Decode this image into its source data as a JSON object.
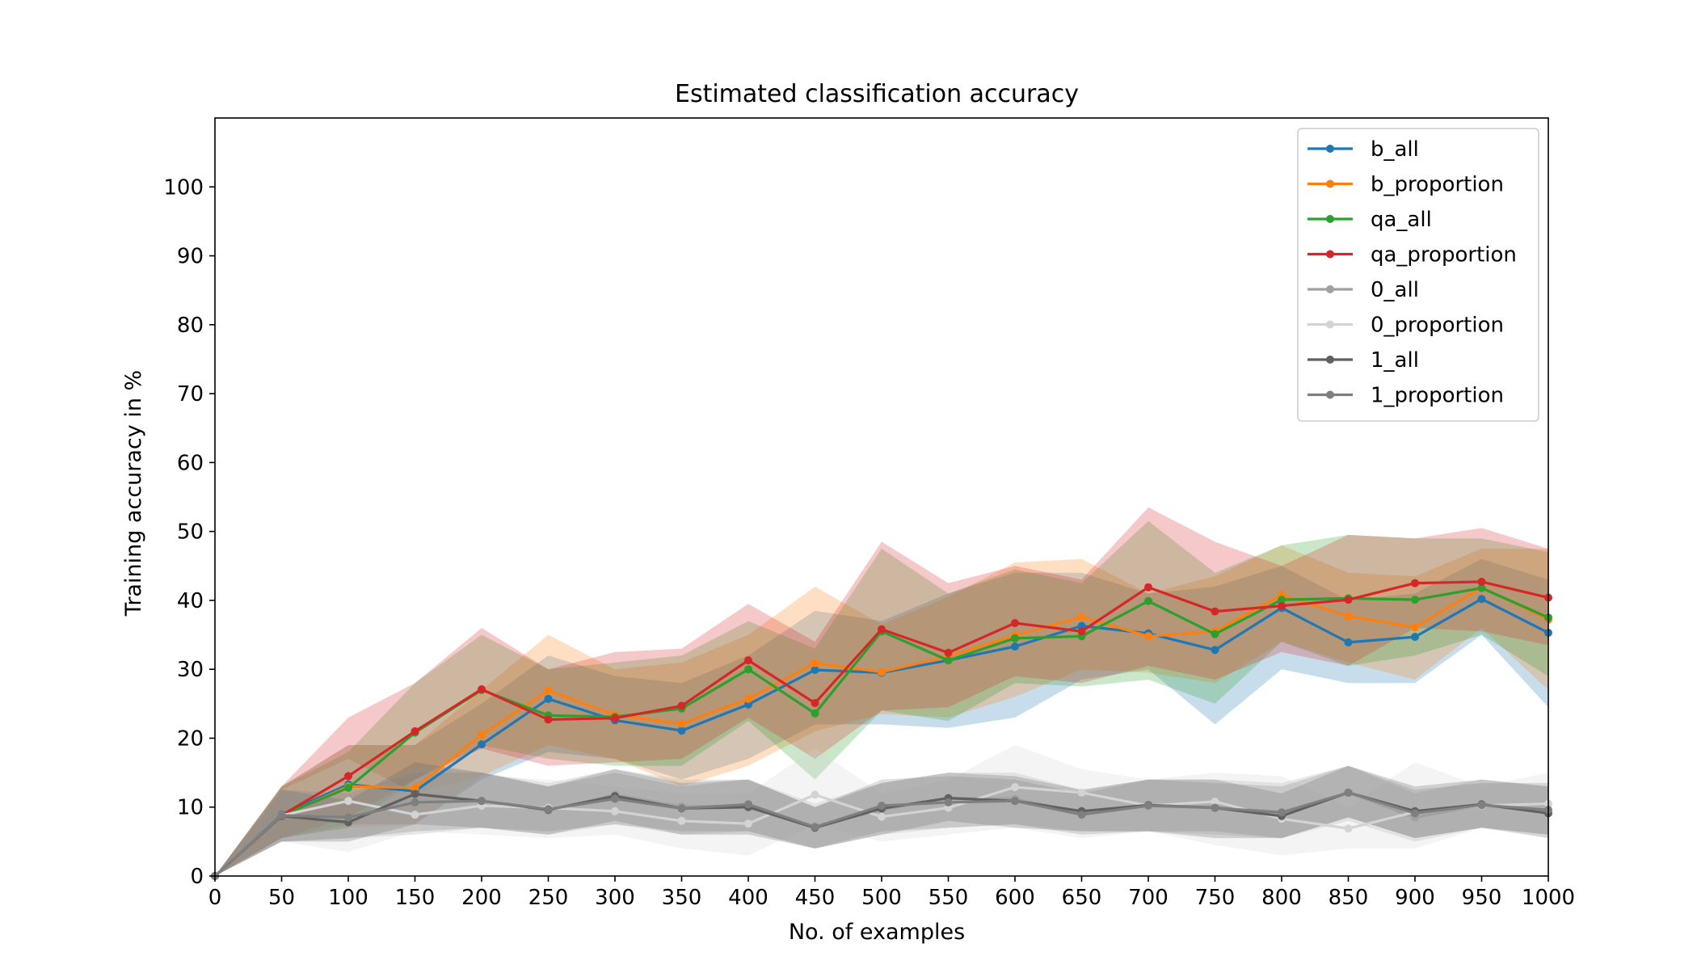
{
  "chart_data": {
    "type": "line",
    "title": "Estimated classification accuracy",
    "xlabel": "No. of examples",
    "ylabel": "Training accuracy in %",
    "xlim": [
      0,
      1000
    ],
    "ylim": [
      0,
      110
    ],
    "xticks": [
      0,
      50,
      100,
      150,
      200,
      250,
      300,
      350,
      400,
      450,
      500,
      550,
      600,
      650,
      700,
      750,
      800,
      850,
      900,
      950,
      1000
    ],
    "yticks": [
      0,
      10,
      20,
      30,
      40,
      50,
      60,
      70,
      80,
      90,
      100
    ],
    "grid": false,
    "legend_position": "top-right",
    "x": [
      0,
      50,
      100,
      150,
      200,
      250,
      300,
      350,
      400,
      450,
      500,
      550,
      600,
      650,
      700,
      750,
      800,
      850,
      900,
      950,
      1000
    ],
    "series": [
      {
        "name": "b_all",
        "color": "#1f77b4",
        "values": [
          0,
          8.9,
          13.3,
          12.3,
          19.1,
          25.7,
          22.6,
          21.1,
          24.9,
          29.9,
          29.5,
          31.3,
          33.3,
          36.3,
          35.2,
          32.8,
          38.9,
          33.9,
          34.7,
          40.2,
          35.3
        ],
        "lower": [
          0,
          5.5,
          7.5,
          7.5,
          14,
          18,
          17,
          14,
          17,
          22,
          22,
          21.5,
          23,
          28.5,
          30,
          22,
          30,
          28,
          28,
          35,
          24.5
        ],
        "upper": [
          0,
          13,
          19,
          19,
          25,
          32,
          29,
          28,
          32,
          38.5,
          37,
          41,
          44,
          44,
          41,
          42,
          45,
          40,
          41,
          46,
          43
        ]
      },
      {
        "name": "b_proportion",
        "color": "#ff7f0e",
        "values": [
          0,
          8.7,
          13.0,
          12.8,
          20.5,
          26.9,
          23.4,
          22.1,
          25.7,
          30.9,
          29.6,
          31.9,
          34.9,
          37.6,
          34.8,
          35.5,
          40.8,
          37.7,
          36.1,
          41.9,
          37.2
        ],
        "lower": [
          0,
          5.5,
          7,
          7.5,
          14.5,
          19,
          17,
          13,
          16,
          21,
          23.5,
          23,
          26,
          30,
          29.5,
          28,
          34,
          31,
          28.5,
          36,
          27
        ],
        "upper": [
          0,
          13,
          19,
          19,
          27,
          35,
          30,
          31,
          35,
          42,
          36.5,
          40.5,
          45.5,
          46,
          41,
          43.5,
          48,
          44,
          43.5,
          47.5,
          47.5
        ]
      },
      {
        "name": "qa_all",
        "color": "#2ca02c",
        "values": [
          0,
          8.8,
          12.8,
          20.8,
          27.0,
          23.3,
          23.1,
          24.3,
          30.0,
          23.6,
          35.5,
          31.3,
          34.5,
          34.8,
          39.9,
          35.1,
          40.1,
          40.3,
          40.1,
          41.8,
          37.5
        ],
        "lower": [
          0,
          5.5,
          7,
          14,
          19,
          17,
          16,
          16,
          22.5,
          14,
          24,
          22.5,
          28,
          27.5,
          28.5,
          25,
          34,
          30.5,
          32,
          35,
          29
        ],
        "upper": [
          0,
          13,
          18,
          28,
          35,
          30,
          31,
          32,
          37,
          33,
          47.5,
          41,
          44.5,
          42.5,
          51.5,
          44,
          48,
          49.5,
          49,
          49,
          47
        ]
      },
      {
        "name": "qa_proportion",
        "color": "#d62728",
        "values": [
          0,
          8.8,
          14.5,
          21.0,
          27.1,
          22.7,
          22.9,
          24.7,
          31.3,
          25.1,
          35.8,
          32.4,
          36.7,
          35.5,
          41.9,
          38.4,
          39.2,
          40.1,
          42.5,
          42.7,
          40.4
        ],
        "lower": [
          0,
          5.5,
          8.5,
          14,
          18.5,
          16,
          16.5,
          17,
          23,
          17,
          24,
          24.5,
          29,
          28,
          30.5,
          28.5,
          32.5,
          30.5,
          36,
          35.5,
          33.5
        ],
        "upper": [
          0,
          13,
          23,
          28,
          36,
          30,
          32.5,
          33,
          39.5,
          34,
          48.5,
          42.5,
          45,
          43,
          53.5,
          48.5,
          45,
          49.5,
          49,
          50.5,
          47.5
        ]
      },
      {
        "name": "0_all",
        "color": "#a0a0a0",
        "values": [
          0,
          8.8,
          8.3,
          11.1,
          10.9,
          9.5,
          11.8,
          10.1,
          10.1,
          7.2,
          9.6,
          11.3,
          11.2,
          9.2,
          10.2,
          10.0,
          9.3,
          12.1,
          8.5,
          10.3,
          9.2
        ],
        "lower": [
          0,
          5,
          5.5,
          6,
          7,
          6,
          7.5,
          6,
          6.5,
          4,
          6,
          7,
          7.5,
          6.5,
          6.5,
          6,
          5.5,
          8,
          5,
          7,
          6
        ],
        "upper": [
          0,
          12.5,
          12,
          16,
          15,
          13.5,
          15.5,
          14,
          14,
          10.5,
          13.5,
          15,
          15,
          12.5,
          14,
          14,
          13.5,
          16,
          12,
          14,
          13
        ]
      },
      {
        "name": "0_proportion",
        "color": "#d3d3d3",
        "values": [
          0,
          8.8,
          10.9,
          8.9,
          10.2,
          9.9,
          9.4,
          8.0,
          7.6,
          11.8,
          8.6,
          9.9,
          12.9,
          12.1,
          10.2,
          10.8,
          8.3,
          6.9,
          9.3,
          10.2,
          10.5
        ],
        "lower": [
          0,
          5,
          3.5,
          6.5,
          6,
          5.5,
          6,
          4,
          3,
          7.5,
          5,
          6,
          7,
          5.5,
          6.5,
          4.5,
          3,
          4,
          4,
          7,
          6
        ],
        "upper": [
          0,
          12.5,
          17,
          12,
          14.5,
          14,
          13,
          12,
          12,
          18.5,
          12,
          14,
          19,
          15.5,
          14,
          15,
          14.5,
          10,
          16.5,
          13,
          15
        ]
      },
      {
        "name": "1_all",
        "color": "#606060",
        "values": [
          0,
          8.7,
          7.8,
          11.9,
          10.9,
          9.6,
          11.6,
          9.8,
          10.0,
          7.0,
          9.8,
          11.3,
          10.9,
          9.4,
          10.3,
          9.9,
          8.7,
          12.1,
          9.4,
          10.4,
          9.1
        ],
        "lower": [
          0,
          5,
          5,
          7.5,
          7,
          6,
          8,
          6,
          6,
          4,
          6,
          8,
          7,
          6.5,
          6.5,
          5.5,
          5.5,
          8.5,
          5.5,
          7,
          5.5
        ],
        "upper": [
          0,
          12.5,
          11,
          16.5,
          15,
          13,
          15.5,
          13.5,
          14,
          10,
          13.5,
          15,
          14.5,
          12.5,
          14,
          14,
          12,
          16,
          13,
          14,
          13
        ]
      },
      {
        "name": "1_proportion",
        "color": "#7f7f7f",
        "values": [
          0,
          8.8,
          8.5,
          10.7,
          10.9,
          9.7,
          11.2,
          9.8,
          10.4,
          7.1,
          10.2,
          10.7,
          10.9,
          8.9,
          10.2,
          9.9,
          9.2,
          12.1,
          9.1,
          10.3,
          9.6
        ],
        "lower": [
          0,
          5,
          5.5,
          6.5,
          7,
          6.5,
          7.5,
          6.5,
          6.5,
          4,
          6.5,
          7,
          7.5,
          6,
          6.5,
          6.5,
          5.5,
          8.5,
          5.5,
          7,
          6
        ],
        "upper": [
          0,
          12.5,
          12,
          15,
          15,
          13,
          15,
          13,
          14,
          10,
          14,
          14.5,
          14,
          12,
          14,
          13.5,
          13,
          16,
          12.5,
          13.5,
          13.5
        ]
      }
    ]
  }
}
